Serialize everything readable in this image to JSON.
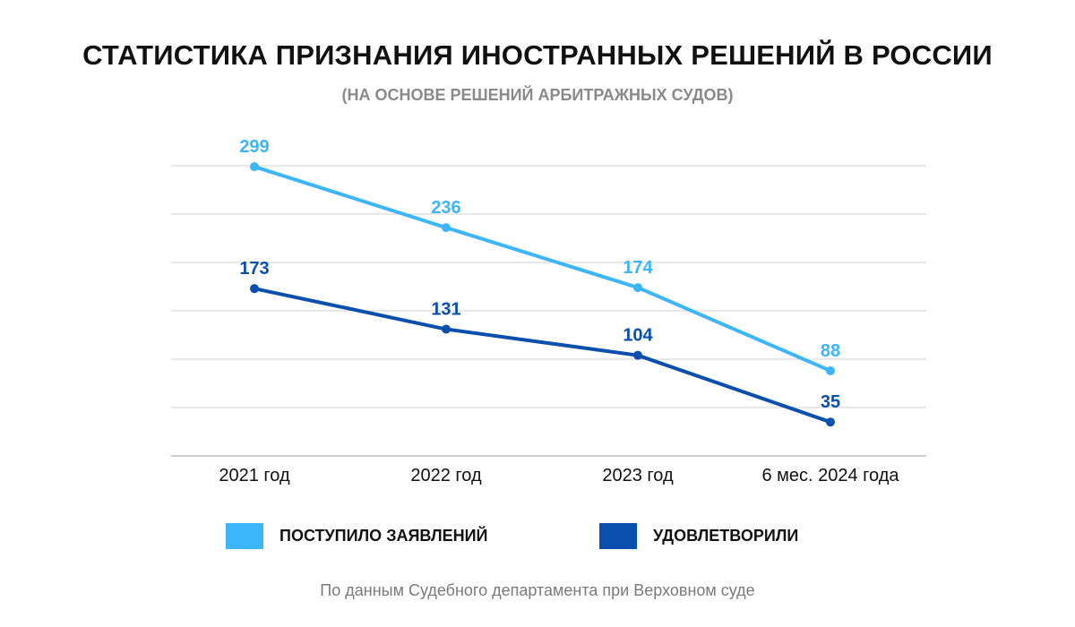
{
  "chart_data": {
    "type": "line",
    "title": "СТАТИСТИКА ПРИЗНАНИЯ ИНОСТРАННЫХ РЕШЕНИЙ В РОССИИ",
    "subtitle": "(НА ОСНОВЕ РЕШЕНИЙ АРБИТРАЖНЫХ СУДОВ)",
    "categories": [
      "2021 год",
      "2022 год",
      "2023 год",
      "6 мес. 2024 года"
    ],
    "series": [
      {
        "name": "ПОСТУПИЛО ЗАЯВЛЕНИЙ",
        "color": "#3db5fa",
        "values": [
          299,
          236,
          174,
          88
        ]
      },
      {
        "name": "УДОВЛЕТВОРИЛИ",
        "color": "#0a4fae",
        "values": [
          173,
          131,
          104,
          35
        ]
      }
    ],
    "xlabel": "",
    "ylabel": "",
    "ylim": [
      0,
      300
    ],
    "grid_step": 50,
    "grid": true,
    "y_tick_labels_visible": false,
    "data_labels": true,
    "legend_position": "bottom"
  },
  "source_note": "По данным Судебного департамента при Верховном суде",
  "colors": {
    "grid": "#d0d0d0",
    "axis": "#bdbdbd",
    "category_label": "#111111"
  }
}
